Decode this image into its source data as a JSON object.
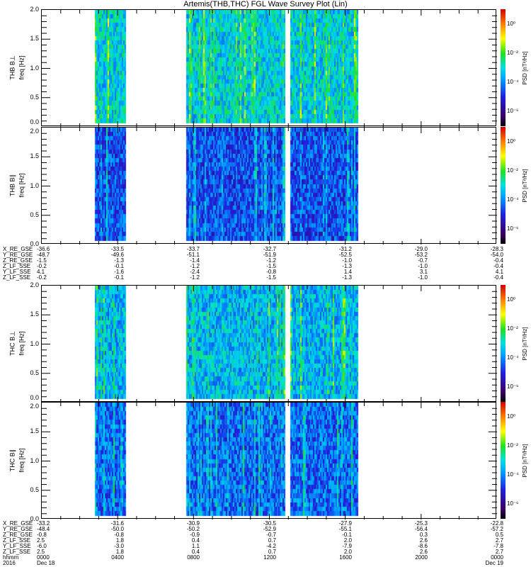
{
  "title": "Artemis(THB,THC) FGL Wave Survey Plot (Lin)",
  "chart_data": {
    "type": "heatmap",
    "title": "Artemis(THB,THC) FGL Wave Survey Plot (Lin)",
    "xlabel": "hhmm",
    "x_range_hours": [
      0,
      24
    ],
    "x_tick_labels": [
      "0000",
      "0400",
      "0800",
      "1200",
      "1600",
      "2000",
      "0000"
    ],
    "date_labels": {
      "year": "2016",
      "start": "Dec 18",
      "end": "Dec 19"
    },
    "data_coverage_hours": [
      [
        2.8,
        4.4
      ],
      [
        7.6,
        12.8
      ],
      [
        13.1,
        16.7
      ]
    ],
    "ylim": [
      0,
      2.0
    ],
    "y_tick_labels": [
      "0.0",
      "0.5",
      "1.0",
      "1.5",
      "2.0"
    ],
    "panels": [
      {
        "name": "THB B⊥",
        "ylabel": "THB B⊥",
        "yunit": "freq [Hz]",
        "typical_log_psd": -3.2
      },
      {
        "name": "THB B∥",
        "ylabel": "THB B∥",
        "yunit": "freq [Hz]",
        "typical_log_psd": -4.6
      },
      {
        "name": "THC B⊥",
        "ylabel": "THC B⊥",
        "yunit": "freq [Hz]",
        "typical_log_psd": -3.5
      },
      {
        "name": "THC B∥",
        "ylabel": "THC B∥",
        "yunit": "freq [Hz]",
        "typical_log_psd": -4.3
      }
    ],
    "colorbar": {
      "label": "PSD [nT²/Hz]",
      "ticks": [
        "10⁰",
        "10⁻²",
        "10⁻⁴",
        "10⁻⁶"
      ],
      "log_range": [
        -7,
        1
      ]
    }
  },
  "ephemeris": [
    {
      "labels": [
        "X_RE_GSE",
        "Y_RE_GSE",
        "Z_RE_GSE",
        "Z_LF_SSE",
        "Y_LF_SSE",
        "Z_LF_SSE"
      ],
      "columns": [
        [
          "-36.6",
          "-48.7",
          "-1.5",
          "-0.2",
          "4.1",
          "-0.2"
        ],
        [
          "-33.5",
          "-49.6",
          "-1.3",
          "-0.1",
          "-1.6",
          "-0.1"
        ],
        [
          "-33.7",
          "-51.1",
          "-1.4",
          "-1.2",
          "-2.4",
          "-1.2"
        ],
        [
          "-32.7",
          "-51.9",
          "-1.2",
          "-1.5",
          "-0.8",
          "-1.5"
        ],
        [
          "-31.2",
          "-52.5",
          "-1.0",
          "-1.3",
          "1.4",
          "-1.3"
        ],
        [
          "-29.0",
          "-53.2",
          "-0.7",
          "-1.0",
          "3.1",
          "-1.0"
        ],
        [
          "-28.3",
          "-54.0",
          "-0.4",
          "-0.4",
          "4.1",
          "-0.4"
        ]
      ]
    },
    {
      "labels": [
        "X_RE_GSE",
        "Y_RE_GSE",
        "Z_RE_GSE",
        "Z_LF_SSE",
        "Y_LF_SSE",
        "Z_LF_SSE",
        "hhmm",
        "2016"
      ],
      "columns": [
        [
          "-33.2",
          "-48.4",
          "-0.8",
          "2.5",
          "-6.0",
          "2.5",
          "0000",
          "Dec 18"
        ],
        [
          "-31.6",
          "-50.0",
          "-0.8",
          "1.8",
          "-3.0",
          "1.8",
          "0400",
          ""
        ],
        [
          "-30.9",
          "-50.2",
          "-0.9",
          "0.4",
          "1.1",
          "0.4",
          "0800",
          ""
        ],
        [
          "-30.5",
          "-52.9",
          "-0.7",
          "0.7",
          "-4.2",
          "0.7",
          "1200",
          ""
        ],
        [
          "-27.9",
          "-55.1",
          "-0.1",
          "2.0",
          "-7.9",
          "2.0",
          "1600",
          ""
        ],
        [
          "-25.3",
          "-56.4",
          "0.3",
          "2.6",
          "-8.6",
          "2.6",
          "2000",
          ""
        ],
        [
          "-22.8",
          "-57.2",
          "0.5",
          "2.7",
          "-7.8",
          "2.7",
          "0000",
          "Dec 19"
        ]
      ]
    }
  ]
}
